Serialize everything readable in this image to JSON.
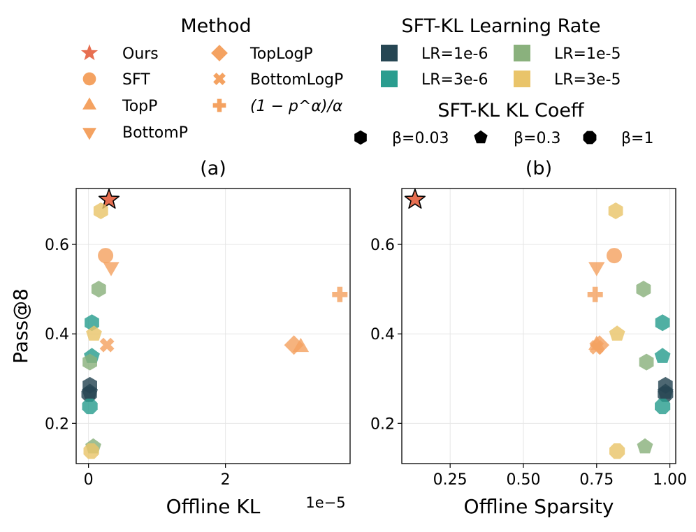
{
  "colors": {
    "method": "#f4a261",
    "ours": "#e76f51",
    "lr_1e6": "#264653",
    "lr_3e6": "#2a9d8f",
    "lr_1e5": "#8ab17d",
    "lr_3e5": "#e9c46a"
  },
  "legend": {
    "method": {
      "title": "Method",
      "entries": [
        {
          "label": "Ours",
          "marker": "star-icon"
        },
        {
          "label": "SFT",
          "marker": "circle-icon"
        },
        {
          "label": "TopP",
          "marker": "triangle-up-icon"
        },
        {
          "label": "BottomP",
          "marker": "triangle-down-icon"
        },
        {
          "label": "TopLogP",
          "marker": "diamond-icon"
        },
        {
          "label": "BottomLogP",
          "marker": "x-icon"
        },
        {
          "label": "(1 − p^α)/α",
          "marker": "plus-icon"
        }
      ]
    },
    "lr": {
      "title": "SFT-KL Learning Rate",
      "entries": [
        {
          "label": "LR=1e-6",
          "color_key": "lr_1e6"
        },
        {
          "label": "LR=1e-5",
          "color_key": "lr_1e5"
        },
        {
          "label": "LR=3e-6",
          "color_key": "lr_3e6"
        },
        {
          "label": "LR=3e-5",
          "color_key": "lr_3e5"
        }
      ]
    },
    "kl": {
      "title": "SFT-KL KL Coeff",
      "entries": [
        {
          "label": "β=0.03",
          "marker": "hexagon-icon"
        },
        {
          "label": "β=0.3",
          "marker": "pentagon-icon"
        },
        {
          "label": "β=1",
          "marker": "octagon-icon"
        }
      ]
    }
  },
  "chart_data": [
    {
      "type": "scatter",
      "panel": "(a)",
      "xlabel": "Offline KL",
      "ylabel": "Pass@8",
      "x_offset_label": "1e−5",
      "xlim": [
        -0.18,
        3.82
      ],
      "ylim": [
        0.11,
        0.725
      ],
      "xticks": [
        0,
        2
      ],
      "xtick_labels": [
        "0",
        "2"
      ],
      "yticks": [
        0.2,
        0.4,
        0.6
      ],
      "ytick_labels": [
        "0.2",
        "0.4",
        "0.6"
      ],
      "grid": true,
      "points": [
        {
          "x": 0.3,
          "y": 0.7,
          "marker": "star",
          "color_key": "ours",
          "series": "Ours"
        },
        {
          "x": 0.25,
          "y": 0.575,
          "marker": "circle",
          "color_key": "method",
          "series": "SFT"
        },
        {
          "x": 3.1,
          "y": 0.37,
          "marker": "triangle-up",
          "color_key": "method",
          "series": "TopP"
        },
        {
          "x": 0.33,
          "y": 0.55,
          "marker": "triangle-down",
          "color_key": "method",
          "series": "BottomP"
        },
        {
          "x": 3.0,
          "y": 0.375,
          "marker": "diamond",
          "color_key": "method",
          "series": "TopLogP"
        },
        {
          "x": 0.27,
          "y": 0.375,
          "marker": "x",
          "color_key": "method",
          "series": "BottomLogP"
        },
        {
          "x": 3.67,
          "y": 0.488,
          "marker": "plus",
          "color_key": "method",
          "series": "(1 − p^α)/α"
        },
        {
          "x": 0.18,
          "y": 0.675,
          "marker": "hexagon",
          "color_key": "lr_3e5",
          "series": "LR=3e-5, β=0.03"
        },
        {
          "x": 0.15,
          "y": 0.5,
          "marker": "hexagon",
          "color_key": "lr_1e5",
          "series": "LR=1e-5, β=0.03"
        },
        {
          "x": 0.05,
          "y": 0.425,
          "marker": "hexagon",
          "color_key": "lr_3e6",
          "series": "LR=3e-6, β=0.03"
        },
        {
          "x": 0.05,
          "y": 0.35,
          "marker": "pentagon",
          "color_key": "lr_3e6",
          "series": "LR=3e-6, β=0.3"
        },
        {
          "x": 0.08,
          "y": 0.4,
          "marker": "pentagon",
          "color_key": "lr_3e5",
          "series": "LR=3e-5, β=0.3"
        },
        {
          "x": 0.02,
          "y": 0.337,
          "marker": "hexagon",
          "color_key": "lr_1e5",
          "series": "LR=1e-5, β=0.3"
        },
        {
          "x": 0.02,
          "y": 0.285,
          "marker": "hexagon",
          "color_key": "lr_1e6",
          "series": "LR=1e-6, β=0.03"
        },
        {
          "x": 0.02,
          "y": 0.27,
          "marker": "pentagon",
          "color_key": "lr_1e6",
          "series": "LR=1e-6, β=0.3"
        },
        {
          "x": 0.01,
          "y": 0.265,
          "marker": "octagon",
          "color_key": "lr_1e6",
          "series": "LR=1e-6, β=1"
        },
        {
          "x": 0.02,
          "y": 0.238,
          "marker": "octagon",
          "color_key": "lr_3e6",
          "series": "LR=3e-6, β=1"
        },
        {
          "x": 0.07,
          "y": 0.148,
          "marker": "pentagon",
          "color_key": "lr_1e5",
          "series": "LR=1e-5, β=1"
        },
        {
          "x": 0.04,
          "y": 0.138,
          "marker": "octagon",
          "color_key": "lr_3e5",
          "series": "LR=3e-5, β=1"
        }
      ]
    },
    {
      "type": "scatter",
      "panel": "(b)",
      "xlabel": "Offline Sparsity",
      "ylabel": "",
      "xlim": [
        0.085,
        1.02
      ],
      "ylim": [
        0.11,
        0.725
      ],
      "xticks": [
        0.25,
        0.5,
        0.75,
        1.0
      ],
      "xtick_labels": [
        "0.25",
        "0.50",
        "0.75",
        "1.00"
      ],
      "yticks": [
        0.2,
        0.4,
        0.6
      ],
      "ytick_labels": [
        "0.2",
        "0.4",
        "0.6"
      ],
      "grid": true,
      "points": [
        {
          "x": 0.13,
          "y": 0.7,
          "marker": "star",
          "color_key": "ours",
          "series": "Ours"
        },
        {
          "x": 0.81,
          "y": 0.575,
          "marker": "circle",
          "color_key": "method",
          "series": "SFT"
        },
        {
          "x": 0.75,
          "y": 0.375,
          "marker": "triangle-up",
          "color_key": "method",
          "series": "TopP"
        },
        {
          "x": 0.75,
          "y": 0.55,
          "marker": "triangle-down",
          "color_key": "method",
          "series": "BottomP"
        },
        {
          "x": 0.76,
          "y": 0.375,
          "marker": "diamond",
          "color_key": "method",
          "series": "TopLogP"
        },
        {
          "x": 0.75,
          "y": 0.37,
          "marker": "x",
          "color_key": "method",
          "series": "BottomLogP"
        },
        {
          "x": 0.745,
          "y": 0.488,
          "marker": "plus",
          "color_key": "method",
          "series": "(1 − p^α)/α"
        },
        {
          "x": 0.815,
          "y": 0.675,
          "marker": "hexagon",
          "color_key": "lr_3e5",
          "series": "LR=3e-5, β=0.03"
        },
        {
          "x": 0.91,
          "y": 0.5,
          "marker": "hexagon",
          "color_key": "lr_1e5",
          "series": "LR=1e-5, β=0.03"
        },
        {
          "x": 0.975,
          "y": 0.425,
          "marker": "hexagon",
          "color_key": "lr_3e6",
          "series": "LR=3e-6, β=0.03"
        },
        {
          "x": 0.975,
          "y": 0.35,
          "marker": "pentagon",
          "color_key": "lr_3e6",
          "series": "LR=3e-6, β=0.3"
        },
        {
          "x": 0.82,
          "y": 0.4,
          "marker": "pentagon",
          "color_key": "lr_3e5",
          "series": "LR=3e-5, β=0.3"
        },
        {
          "x": 0.92,
          "y": 0.337,
          "marker": "hexagon",
          "color_key": "lr_1e5",
          "series": "LR=1e-5, β=0.3"
        },
        {
          "x": 0.985,
          "y": 0.285,
          "marker": "hexagon",
          "color_key": "lr_1e6",
          "series": "LR=1e-6, β=0.03"
        },
        {
          "x": 0.985,
          "y": 0.27,
          "marker": "pentagon",
          "color_key": "lr_1e6",
          "series": "LR=1e-6, β=0.3"
        },
        {
          "x": 0.985,
          "y": 0.265,
          "marker": "octagon",
          "color_key": "lr_1e6",
          "series": "LR=1e-6, β=1"
        },
        {
          "x": 0.975,
          "y": 0.238,
          "marker": "octagon",
          "color_key": "lr_3e6",
          "series": "LR=3e-6, β=1"
        },
        {
          "x": 0.915,
          "y": 0.148,
          "marker": "pentagon",
          "color_key": "lr_1e5",
          "series": "LR=1e-5, β=1"
        },
        {
          "x": 0.82,
          "y": 0.138,
          "marker": "octagon",
          "color_key": "lr_3e5",
          "series": "LR=3e-5, β=1"
        }
      ]
    }
  ]
}
